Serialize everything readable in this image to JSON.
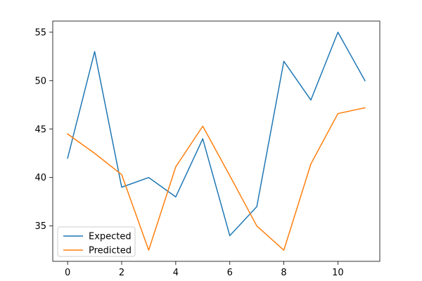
{
  "chart_data": {
    "type": "line",
    "title": "",
    "xlabel": "",
    "ylabel": "",
    "x": [
      0,
      1,
      2,
      3,
      4,
      5,
      6,
      7,
      8,
      9,
      10,
      11
    ],
    "xlim": [
      -0.55,
      11.55
    ],
    "ylim": [
      31.35,
      56.15
    ],
    "xticks": [
      0,
      2,
      4,
      6,
      8,
      10
    ],
    "yticks": [
      35,
      40,
      45,
      50,
      55
    ],
    "xtick_labels": [
      "0",
      "2",
      "4",
      "6",
      "8",
      "10"
    ],
    "ytick_labels": [
      "35",
      "40",
      "45",
      "50",
      "55"
    ],
    "grid": false,
    "legend_position": "lower-left",
    "series": [
      {
        "name": "Expected",
        "color": "#1f77b4",
        "values": [
          42,
          53,
          39,
          40,
          38,
          44,
          34,
          37,
          52,
          48,
          55,
          50
        ]
      },
      {
        "name": "Predicted",
        "color": "#ff7f0e",
        "values": [
          44.5,
          42.5,
          40.3,
          32.5,
          41.1,
          45.3,
          40.2,
          35.0,
          32.5,
          41.4,
          46.6,
          47.2
        ]
      }
    ]
  }
}
